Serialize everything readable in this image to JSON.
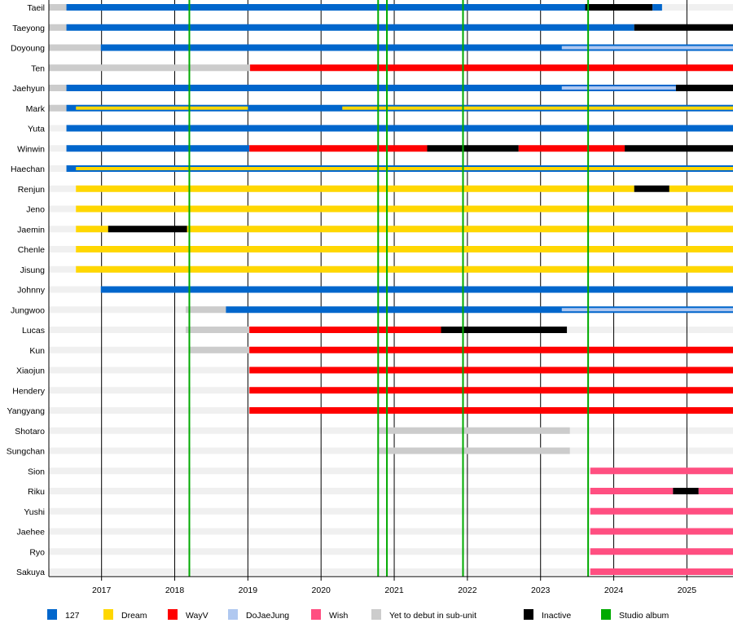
{
  "chart_data": {
    "type": "timeline",
    "xlim": [
      2016.28,
      2025.63
    ],
    "xticks": [
      "2017",
      "2018",
      "2019",
      "2020",
      "2021",
      "2022",
      "2023",
      "2024",
      "2025"
    ],
    "grid": true,
    "legend_position": "bottom",
    "colors": {
      "track": "#f0f0f0",
      "yet": "#cccccc",
      "127": "#0066cc",
      "dream": "#ffd700",
      "wayv": "#ff0000",
      "djj": "#b0c8f0",
      "wish": "#ff4f81",
      "inactive": "#000000",
      "album": "#00aa00"
    },
    "legend": [
      {
        "key": "127",
        "label": "127"
      },
      {
        "key": "dream",
        "label": "Dream"
      },
      {
        "key": "wayv",
        "label": "WayV"
      },
      {
        "key": "djj",
        "label": "DoJaeJung"
      },
      {
        "key": "wish",
        "label": "Wish"
      },
      {
        "key": "yet",
        "label": "Yet to debut in sub-unit"
      },
      {
        "key": "inactive",
        "label": "Inactive"
      },
      {
        "key": "album",
        "label": "Studio album"
      }
    ],
    "studio_albums": [
      2018.2,
      2020.78,
      2020.9,
      2021.94,
      2023.65
    ],
    "members": [
      {
        "name": "Taeil",
        "segments": [
          {
            "t": "yet",
            "s": 2016.28,
            "e": 2016.52
          },
          {
            "t": "127",
            "s": 2016.52,
            "e": 2023.61
          },
          {
            "t": "inactive",
            "s": 2023.61,
            "e": 2024.53
          },
          {
            "t": "127",
            "s": 2024.53,
            "e": 2024.66
          }
        ]
      },
      {
        "name": "Taeyong",
        "segments": [
          {
            "t": "yet",
            "s": 2016.28,
            "e": 2016.52
          },
          {
            "t": "127",
            "s": 2016.52,
            "e": 2024.28
          },
          {
            "t": "inactive",
            "s": 2024.28,
            "e": 2025.63
          }
        ]
      },
      {
        "name": "Doyoung",
        "segments": [
          {
            "t": "yet",
            "s": 2016.28,
            "e": 2016.99
          },
          {
            "t": "127",
            "s": 2016.99,
            "e": 2025.63
          },
          {
            "t": "djj",
            "s": 2023.29,
            "e": 2025.63,
            "overlay": true
          }
        ]
      },
      {
        "name": "Ten",
        "segments": [
          {
            "t": "yet",
            "s": 2016.28,
            "e": 2019.03
          },
          {
            "t": "wayv",
            "s": 2019.03,
            "e": 2025.63
          }
        ]
      },
      {
        "name": "Jaehyun",
        "segments": [
          {
            "t": "yet",
            "s": 2016.28,
            "e": 2016.52
          },
          {
            "t": "127",
            "s": 2016.52,
            "e": 2024.85
          },
          {
            "t": "djj",
            "s": 2023.29,
            "e": 2024.85,
            "overlay": true
          },
          {
            "t": "inactive",
            "s": 2024.85,
            "e": 2025.63
          }
        ]
      },
      {
        "name": "Mark",
        "segments": [
          {
            "t": "yet",
            "s": 2016.28,
            "e": 2016.52
          },
          {
            "t": "127",
            "s": 2016.52,
            "e": 2025.63
          },
          {
            "t": "dream",
            "s": 2016.65,
            "e": 2019.0,
            "overlay": true
          },
          {
            "t": "dream",
            "s": 2020.29,
            "e": 2025.63,
            "overlay": true
          }
        ]
      },
      {
        "name": "Yuta",
        "segments": [
          {
            "t": "127",
            "s": 2016.52,
            "e": 2025.63
          }
        ]
      },
      {
        "name": "Winwin",
        "segments": [
          {
            "t": "127",
            "s": 2016.52,
            "e": 2019.02
          },
          {
            "t": "wayv",
            "s": 2019.02,
            "e": 2021.45
          },
          {
            "t": "inactive",
            "s": 2021.45,
            "e": 2022.7
          },
          {
            "t": "wayv",
            "s": 2022.7,
            "e": 2024.15
          },
          {
            "t": "inactive",
            "s": 2024.15,
            "e": 2025.63
          }
        ]
      },
      {
        "name": "Haechan",
        "segments": [
          {
            "t": "127",
            "s": 2016.52,
            "e": 2025.63
          },
          {
            "t": "dream",
            "s": 2016.65,
            "e": 2025.63,
            "overlay": true
          }
        ]
      },
      {
        "name": "Renjun",
        "segments": [
          {
            "t": "dream",
            "s": 2016.65,
            "e": 2024.28
          },
          {
            "t": "inactive",
            "s": 2024.28,
            "e": 2024.76
          },
          {
            "t": "dream",
            "s": 2024.76,
            "e": 2025.63
          }
        ]
      },
      {
        "name": "Jeno",
        "segments": [
          {
            "t": "dream",
            "s": 2016.65,
            "e": 2025.63
          }
        ]
      },
      {
        "name": "Jaemin",
        "segments": [
          {
            "t": "dream",
            "s": 2016.65,
            "e": 2017.09
          },
          {
            "t": "inactive",
            "s": 2017.09,
            "e": 2018.17
          },
          {
            "t": "dream",
            "s": 2018.17,
            "e": 2025.63
          }
        ]
      },
      {
        "name": "Chenle",
        "segments": [
          {
            "t": "dream",
            "s": 2016.65,
            "e": 2025.63
          }
        ]
      },
      {
        "name": "Jisung",
        "segments": [
          {
            "t": "dream",
            "s": 2016.65,
            "e": 2025.63
          }
        ]
      },
      {
        "name": "Johnny",
        "segments": [
          {
            "t": "127",
            "s": 2016.99,
            "e": 2025.63
          }
        ]
      },
      {
        "name": "Jungwoo",
        "segments": [
          {
            "t": "yet",
            "s": 2018.15,
            "e": 2018.7
          },
          {
            "t": "127",
            "s": 2018.7,
            "e": 2025.63
          },
          {
            "t": "djj",
            "s": 2023.29,
            "e": 2025.63,
            "overlay": true
          }
        ]
      },
      {
        "name": "Lucas",
        "segments": [
          {
            "t": "yet",
            "s": 2018.15,
            "e": 2019.02
          },
          {
            "t": "wayv",
            "s": 2019.02,
            "e": 2021.64
          },
          {
            "t": "inactive",
            "s": 2021.64,
            "e": 2023.36
          }
        ]
      },
      {
        "name": "Kun",
        "segments": [
          {
            "t": "yet",
            "s": 2018.21,
            "e": 2019.02
          },
          {
            "t": "wayv",
            "s": 2019.02,
            "e": 2025.63
          }
        ]
      },
      {
        "name": "Xiaojun",
        "segments": [
          {
            "t": "wayv",
            "s": 2019.02,
            "e": 2025.63
          }
        ]
      },
      {
        "name": "Hendery",
        "segments": [
          {
            "t": "wayv",
            "s": 2019.02,
            "e": 2025.63
          }
        ]
      },
      {
        "name": "Yangyang",
        "segments": [
          {
            "t": "wayv",
            "s": 2019.02,
            "e": 2025.63
          }
        ]
      },
      {
        "name": "Shotaro",
        "segments": [
          {
            "t": "yet",
            "s": 2020.78,
            "e": 2023.4
          }
        ]
      },
      {
        "name": "Sungchan",
        "segments": [
          {
            "t": "yet",
            "s": 2020.78,
            "e": 2023.4
          }
        ]
      },
      {
        "name": "Sion",
        "segments": [
          {
            "t": "wish",
            "s": 2023.68,
            "e": 2025.63
          }
        ]
      },
      {
        "name": "Riku",
        "segments": [
          {
            "t": "wish",
            "s": 2023.68,
            "e": 2024.81
          },
          {
            "t": "inactive",
            "s": 2024.81,
            "e": 2025.16
          },
          {
            "t": "wish",
            "s": 2025.16,
            "e": 2025.63
          }
        ]
      },
      {
        "name": "Yushi",
        "segments": [
          {
            "t": "wish",
            "s": 2023.68,
            "e": 2025.63
          }
        ]
      },
      {
        "name": "Jaehee",
        "segments": [
          {
            "t": "wish",
            "s": 2023.68,
            "e": 2025.63
          }
        ]
      },
      {
        "name": "Ryo",
        "segments": [
          {
            "t": "wish",
            "s": 2023.68,
            "e": 2025.63
          }
        ]
      },
      {
        "name": "Sakuya",
        "segments": [
          {
            "t": "wish",
            "s": 2023.68,
            "e": 2025.63
          }
        ]
      }
    ]
  }
}
